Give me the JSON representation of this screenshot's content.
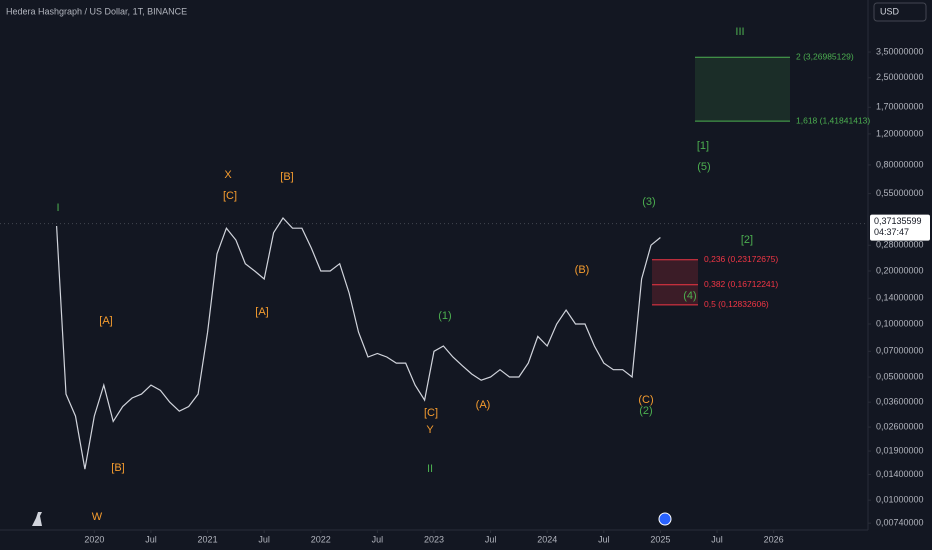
{
  "chart_data": {
    "type": "line",
    "title": "Hedera Hashgraph / US Dollar, 1T, BINANCE",
    "currency": "USD",
    "log": true,
    "grid": false,
    "color": "#d1d4dc",
    "x": [
      "2019-09",
      "2019-10",
      "2019-11",
      "2019-12",
      "2020-01",
      "2020-02",
      "2020-03",
      "2020-04",
      "2020-05",
      "2020-06",
      "2020-07",
      "2020-08",
      "2020-09",
      "2020-10",
      "2020-11",
      "2020-12",
      "2021-01",
      "2021-02",
      "2021-03",
      "2021-04",
      "2021-05",
      "2021-06",
      "2021-07",
      "2021-08",
      "2021-09",
      "2021-10",
      "2021-11",
      "2021-12",
      "2022-01",
      "2022-02",
      "2022-03",
      "2022-04",
      "2022-05",
      "2022-06",
      "2022-07",
      "2022-08",
      "2022-09",
      "2022-10",
      "2022-11",
      "2022-12",
      "2023-01",
      "2023-02",
      "2023-03",
      "2023-04",
      "2023-05",
      "2023-06",
      "2023-07",
      "2023-08",
      "2023-09",
      "2023-10",
      "2023-11",
      "2023-12",
      "2024-01",
      "2024-02",
      "2024-03",
      "2024-04",
      "2024-05",
      "2024-06",
      "2024-07",
      "2024-08",
      "2024-09",
      "2024-10",
      "2024-11",
      "2024-12",
      "2025-01"
    ],
    "values": [
      0.36,
      0.04,
      0.03,
      0.015,
      0.03,
      0.045,
      0.028,
      0.034,
      0.038,
      0.04,
      0.045,
      0.042,
      0.036,
      0.032,
      0.034,
      0.04,
      0.09,
      0.25,
      0.35,
      0.3,
      0.22,
      0.2,
      0.18,
      0.33,
      0.4,
      0.35,
      0.35,
      0.27,
      0.2,
      0.2,
      0.22,
      0.15,
      0.09,
      0.065,
      0.068,
      0.065,
      0.06,
      0.06,
      0.045,
      0.037,
      0.07,
      0.075,
      0.065,
      0.058,
      0.052,
      0.048,
      0.05,
      0.055,
      0.05,
      0.05,
      0.06,
      0.085,
      0.075,
      0.1,
      0.12,
      0.1,
      0.1,
      0.075,
      0.06,
      0.055,
      0.055,
      0.05,
      0.18,
      0.28,
      0.31
    ],
    "xlim": [
      "2019-03",
      "2026-11"
    ],
    "xticks": [
      {
        "value": "2020-01",
        "label": "2020"
      },
      {
        "value": "2020-07",
        "label": "Jul"
      },
      {
        "value": "2021-01",
        "label": "2021"
      },
      {
        "value": "2021-07",
        "label": "Jul"
      },
      {
        "value": "2022-01",
        "label": "2022"
      },
      {
        "value": "2022-07",
        "label": "Jul"
      },
      {
        "value": "2023-01",
        "label": "2023"
      },
      {
        "value": "2023-07",
        "label": "Jul"
      },
      {
        "value": "2024-01",
        "label": "2024"
      },
      {
        "value": "2024-07",
        "label": "Jul"
      },
      {
        "value": "2025-01",
        "label": "2025"
      },
      {
        "value": "2025-07",
        "label": "Jul"
      },
      {
        "value": "2026-01",
        "label": "2026"
      }
    ],
    "ylim": [
      0.00677,
      6.91
    ],
    "yticks": [
      {
        "value": 3.5,
        "label": "3,50000000"
      },
      {
        "value": 2.5,
        "label": "2,50000000"
      },
      {
        "value": 1.7,
        "label": "1,70000000"
      },
      {
        "value": 1.2,
        "label": "1,20000000"
      },
      {
        "value": 0.8,
        "label": "0,80000000"
      },
      {
        "value": 0.55,
        "label": "0,55000000"
      },
      {
        "value": 0.28,
        "label": "0,28000000"
      },
      {
        "value": 0.2,
        "label": "0,20000000"
      },
      {
        "value": 0.14,
        "label": "0,14000000"
      },
      {
        "value": 0.1,
        "label": "0,10000000"
      },
      {
        "value": 0.07,
        "label": "0,07000000"
      },
      {
        "value": 0.05,
        "label": "0,05000000"
      },
      {
        "value": 0.036,
        "label": "0,03600000"
      },
      {
        "value": 0.026,
        "label": "0,02600000"
      },
      {
        "value": 0.019,
        "label": "0,01900000"
      },
      {
        "value": 0.014,
        "label": "0,01400000"
      },
      {
        "value": 0.01,
        "label": "0,01000000"
      },
      {
        "value": 0.0074,
        "label": "0,00740000"
      }
    ],
    "last_price": {
      "value": 0.37135599,
      "label": "0,37135599"
    },
    "countdown": "04:37:47",
    "fib_levels": [
      {
        "value": 0.23172675,
        "label": "0,236 (0,23172675)"
      },
      {
        "value": 0.16712241,
        "label": "0,382 (0,16712241)"
      },
      {
        "value": 0.12832606,
        "label": "0,5 (0,12832606)"
      }
    ],
    "target_levels": [
      {
        "value": 1.41841413,
        "label": "1,618 (1,41841413)"
      },
      {
        "value": 3.26985129,
        "label": "2 (3,26985129)"
      }
    ],
    "annotations": [
      {
        "text": "I",
        "color": "#4caf50"
      },
      {
        "text": "W",
        "color": "#f59c2f"
      },
      {
        "text": "[A]",
        "color": "#f59c2f"
      },
      {
        "text": "[B]",
        "color": "#f59c2f"
      },
      {
        "text": "X",
        "color": "#f59c2f"
      },
      {
        "text": "[C]",
        "color": "#f59c2f"
      },
      {
        "text": "[A]",
        "color": "#f59c2f"
      },
      {
        "text": "[B]",
        "color": "#f59c2f"
      },
      {
        "text": "(1)",
        "color": "#4caf50"
      },
      {
        "text": "Y",
        "color": "#f59c2f"
      },
      {
        "text": "[C]",
        "color": "#f59c2f"
      },
      {
        "text": "II",
        "color": "#4caf50"
      },
      {
        "text": "(A)",
        "color": "#f59c2f"
      },
      {
        "text": "(B)",
        "color": "#f59c2f"
      },
      {
        "text": "(C)",
        "color": "#f59c2f"
      },
      {
        "text": "(2)",
        "color": "#4caf50"
      },
      {
        "text": "(3)",
        "color": "#4caf50"
      },
      {
        "text": "[1]",
        "color": "#4caf50"
      },
      {
        "text": "(5)",
        "color": "#4caf50"
      },
      {
        "text": "III",
        "color": "#4caf50"
      },
      {
        "text": "[2]",
        "color": "#4caf50"
      },
      {
        "text": "(4)",
        "color": "#4caf50"
      }
    ]
  }
}
